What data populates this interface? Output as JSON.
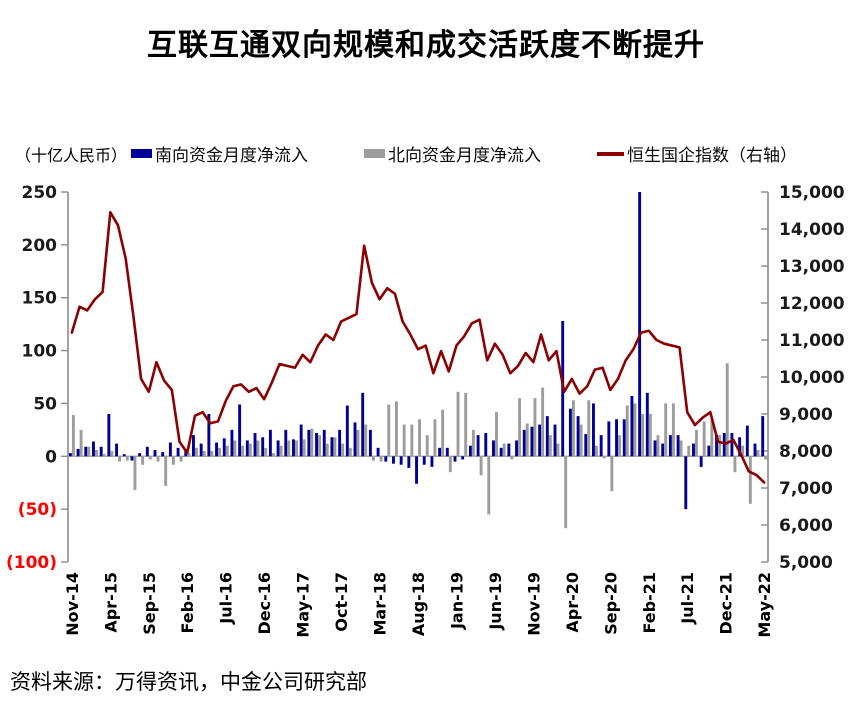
{
  "title": "互联互通双向规模和成交活跃度不断提升",
  "source": "资料来源：万得资讯，中金公司研究部",
  "legend": {
    "unit_label": "（十亿人民币）",
    "series": [
      {
        "label": "南向资金月度净流入",
        "color": "#000099",
        "type": "bar"
      },
      {
        "label": "北向资金月度净流入",
        "color": "#9C9C9C",
        "type": "bar"
      },
      {
        "label": "恒生国企指数（右轴）",
        "color": "#8B0000",
        "type": "line"
      }
    ]
  },
  "chart_data": {
    "type": "combo",
    "title": "互联互通双向规模和成交活跃度不断提升",
    "unit": "十亿人民币",
    "tick_every": 5,
    "grid": false,
    "legend_position": "top",
    "clip_note": "Jan-21 southbound bar exceeds axis max and is clipped at 250",
    "left_axis": {
      "min": -100,
      "max": 250,
      "step": 50,
      "negative_color": "#FF0000",
      "ticks": [
        {
          "label": "250",
          "value": 250
        },
        {
          "label": "200",
          "value": 200
        },
        {
          "label": "150",
          "value": 150
        },
        {
          "label": "100",
          "value": 100
        },
        {
          "label": "50",
          "value": 50
        },
        {
          "label": "0",
          "value": 0
        },
        {
          "label": "(50)",
          "value": -50
        },
        {
          "label": "(100)",
          "value": -100
        }
      ]
    },
    "right_axis": {
      "min": 5000,
      "max": 15000,
      "step": 1000,
      "ticks": [
        {
          "label": "15,000",
          "value": 15000
        },
        {
          "label": "14,000",
          "value": 14000
        },
        {
          "label": "13,000",
          "value": 13000
        },
        {
          "label": "12,000",
          "value": 12000
        },
        {
          "label": "11,000",
          "value": 11000
        },
        {
          "label": "10,000",
          "value": 10000
        },
        {
          "label": "9,000",
          "value": 9000
        },
        {
          "label": "8,000",
          "value": 8000
        },
        {
          "label": "7,000",
          "value": 7000
        },
        {
          "label": "6,000",
          "value": 6000
        },
        {
          "label": "5,000",
          "value": 5000
        }
      ]
    },
    "categories": [
      "Nov-14",
      "Dec-14",
      "Jan-15",
      "Feb-15",
      "Mar-15",
      "Apr-15",
      "May-15",
      "Jun-15",
      "Jul-15",
      "Aug-15",
      "Sep-15",
      "Oct-15",
      "Nov-15",
      "Dec-15",
      "Jan-16",
      "Feb-16",
      "Mar-16",
      "Apr-16",
      "May-16",
      "Jun-16",
      "Jul-16",
      "Aug-16",
      "Sep-16",
      "Oct-16",
      "Nov-16",
      "Dec-16",
      "Jan-17",
      "Feb-17",
      "Mar-17",
      "Apr-17",
      "May-17",
      "Jun-17",
      "Jul-17",
      "Aug-17",
      "Sep-17",
      "Oct-17",
      "Nov-17",
      "Dec-17",
      "Jan-18",
      "Feb-18",
      "Mar-18",
      "Apr-18",
      "May-18",
      "Jun-18",
      "Jul-18",
      "Aug-18",
      "Sep-18",
      "Oct-18",
      "Nov-18",
      "Dec-18",
      "Jan-19",
      "Feb-19",
      "Mar-19",
      "Apr-19",
      "May-19",
      "Jun-19",
      "Jul-19",
      "Aug-19",
      "Sep-19",
      "Oct-19",
      "Nov-19",
      "Dec-19",
      "Jan-20",
      "Feb-20",
      "Mar-20",
      "Apr-20",
      "May-20",
      "Jun-20",
      "Jul-20",
      "Aug-20",
      "Sep-20",
      "Oct-20",
      "Nov-20",
      "Dec-20",
      "Jan-21",
      "Feb-21",
      "Mar-21",
      "Apr-21",
      "May-21",
      "Jun-21",
      "Jul-21",
      "Aug-21",
      "Sep-21",
      "Oct-21",
      "Nov-21",
      "Dec-21",
      "Jan-22",
      "Feb-22",
      "Mar-22",
      "Apr-22",
      "May-22"
    ],
    "series": [
      {
        "name": "南向资金月度净流入",
        "type": "bar",
        "axis": "left",
        "color": "#000099",
        "values": [
          3,
          7,
          9,
          14,
          9,
          40,
          12,
          2,
          -4,
          3,
          9,
          6,
          4,
          13,
          8,
          7,
          20,
          12,
          40,
          13,
          17,
          25,
          49,
          15,
          22,
          18,
          25,
          15,
          25,
          16,
          30,
          25,
          22,
          25,
          18,
          25,
          48,
          32,
          60,
          25,
          8,
          -5,
          -7,
          -8,
          -11,
          -26,
          -8,
          -10,
          8,
          8,
          -5,
          -3,
          10,
          20,
          22,
          15,
          8,
          12,
          15,
          25,
          28,
          30,
          38,
          30,
          128,
          45,
          38,
          21,
          50,
          20,
          33,
          35,
          35,
          57,
          250,
          60,
          15,
          12,
          20,
          20,
          -50,
          12,
          -10,
          10,
          20,
          22,
          22,
          18,
          29,
          12,
          38
        ]
      },
      {
        "name": "北向资金月度净流入",
        "type": "bar",
        "axis": "left",
        "color": "#9C9C9C",
        "values": [
          39,
          25,
          9,
          6,
          2,
          5,
          -5,
          -4,
          -32,
          -8,
          -3,
          -5,
          -28,
          -8,
          -5,
          3,
          8,
          5,
          5,
          8,
          10,
          15,
          10,
          12,
          15,
          8,
          3,
          10,
          15,
          15,
          16,
          26,
          20,
          12,
          18,
          12,
          8,
          25,
          30,
          -4,
          -5,
          49,
          52,
          30,
          30,
          35,
          20,
          35,
          44,
          -15,
          61,
          60,
          25,
          -18,
          -55,
          42,
          12,
          -3,
          55,
          31,
          55,
          65,
          20,
          12,
          -68,
          53,
          30,
          53,
          10,
          -2,
          -33,
          20,
          48,
          50,
          40,
          40,
          20,
          50,
          50,
          15,
          10,
          25,
          33,
          35,
          20,
          88,
          -15,
          10,
          -45,
          6,
          -3
        ]
      },
      {
        "name": "恒生国企指数（右轴）",
        "type": "line",
        "axis": "right",
        "color": "#8B0000",
        "values": [
          11200,
          11900,
          11800,
          12100,
          12300,
          14450,
          14100,
          13200,
          11650,
          9950,
          9600,
          10400,
          9900,
          9650,
          8250,
          7950,
          8950,
          9050,
          8750,
          8800,
          9350,
          9750,
          9800,
          9600,
          9700,
          9400,
          9850,
          10350,
          10300,
          10250,
          10600,
          10400,
          10850,
          11150,
          11000,
          11500,
          11600,
          11700,
          13550,
          12550,
          12100,
          12400,
          12250,
          11500,
          11150,
          10750,
          10850,
          10100,
          10700,
          10150,
          10850,
          11100,
          11450,
          11550,
          10450,
          10900,
          10600,
          10100,
          10300,
          10650,
          10400,
          11150,
          10450,
          10700,
          9600,
          9950,
          9550,
          9750,
          10200,
          10250,
          9650,
          9950,
          10450,
          10750,
          11200,
          11250,
          11000,
          10900,
          10850,
          10800,
          9050,
          8700,
          8900,
          9050,
          8250,
          8200,
          8300,
          7900,
          7450,
          7350,
          7150
        ]
      }
    ]
  }
}
